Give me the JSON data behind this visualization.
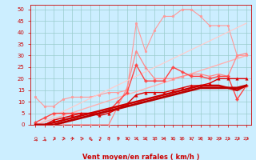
{
  "title": "",
  "xlabel": "Vent moyen/en rafales ( km/h )",
  "xlim": [
    -0.5,
    23.5
  ],
  "ylim": [
    0,
    52
  ],
  "xticks": [
    0,
    1,
    2,
    3,
    4,
    5,
    6,
    7,
    8,
    9,
    10,
    11,
    12,
    13,
    14,
    15,
    16,
    17,
    18,
    19,
    20,
    21,
    22,
    23
  ],
  "yticks": [
    0,
    5,
    10,
    15,
    20,
    25,
    30,
    35,
    40,
    45,
    50
  ],
  "bg_color": "#cceeff",
  "grid_color": "#99cccc",
  "lines": [
    {
      "comment": "lightest pink - top diagonal straight line (rafales max)",
      "color": "#ffb0b0",
      "lw": 1.0,
      "marker": null,
      "x": [
        0,
        23
      ],
      "y": [
        0,
        30
      ]
    },
    {
      "comment": "light pink with circle markers - highest peaking line",
      "color": "#ff9999",
      "lw": 0.8,
      "marker": "o",
      "markersize": 2.0,
      "x": [
        0,
        1,
        2,
        3,
        4,
        5,
        6,
        7,
        8,
        9,
        10,
        11,
        12,
        13,
        14,
        15,
        16,
        17,
        18,
        19,
        20,
        21,
        22,
        23
      ],
      "y": [
        12,
        8,
        8,
        11,
        12,
        12,
        12,
        13,
        14,
        14,
        15,
        44,
        32,
        41,
        47,
        47,
        50,
        50,
        47,
        43,
        43,
        43,
        30,
        30
      ]
    },
    {
      "comment": "medium pink triangle - second high line",
      "color": "#ff8888",
      "lw": 0.9,
      "marker": "^",
      "markersize": 2.5,
      "x": [
        0,
        1,
        2,
        3,
        4,
        5,
        6,
        7,
        8,
        9,
        10,
        11,
        12,
        13,
        14,
        15,
        16,
        17,
        18,
        19,
        20,
        21,
        22,
        23
      ],
      "y": [
        0,
        0,
        0,
        0,
        0,
        0,
        0,
        0,
        0,
        8,
        16,
        32,
        25,
        20,
        20,
        20,
        21,
        22,
        22,
        21,
        22,
        21,
        30,
        31
      ]
    },
    {
      "comment": "light pink diagonal line (straight trend, no markers)",
      "color": "#ffcccc",
      "lw": 0.9,
      "marker": null,
      "x": [
        0,
        23
      ],
      "y": [
        0,
        44
      ]
    },
    {
      "comment": "medium red with cross markers - jagged mid line",
      "color": "#ff4444",
      "lw": 1.0,
      "marker": "P",
      "markersize": 2.5,
      "x": [
        0,
        1,
        2,
        3,
        4,
        5,
        6,
        7,
        8,
        9,
        10,
        11,
        12,
        13,
        14,
        15,
        16,
        17,
        18,
        19,
        20,
        21,
        22,
        23
      ],
      "y": [
        1,
        3,
        5,
        5,
        5,
        5,
        5,
        5,
        6,
        10,
        14,
        26,
        19,
        19,
        19,
        25,
        23,
        21,
        21,
        20,
        21,
        21,
        11,
        17
      ]
    },
    {
      "comment": "bright red with triangle markers - mid line",
      "color": "#dd0000",
      "lw": 1.0,
      "marker": "^",
      "markersize": 2.5,
      "x": [
        0,
        1,
        2,
        3,
        4,
        5,
        6,
        7,
        8,
        9,
        10,
        11,
        12,
        13,
        14,
        15,
        16,
        17,
        18,
        19,
        20,
        21,
        22,
        23
      ],
      "y": [
        0,
        0,
        2,
        3,
        4,
        5,
        5,
        4,
        5,
        7,
        9,
        13,
        14,
        14,
        14,
        15,
        16,
        17,
        17,
        18,
        20,
        20,
        20,
        20
      ]
    },
    {
      "comment": "dark red smooth curve - main thick curve",
      "color": "#cc0000",
      "lw": 1.8,
      "marker": null,
      "x": [
        0,
        1,
        2,
        3,
        4,
        5,
        6,
        7,
        8,
        9,
        10,
        11,
        12,
        13,
        14,
        15,
        16,
        17,
        18,
        19,
        20,
        21,
        22,
        23
      ],
      "y": [
        0,
        0,
        1,
        2,
        3,
        4,
        5,
        6,
        7,
        8,
        9,
        10,
        11,
        12,
        13,
        14,
        15,
        16,
        17,
        17,
        17,
        16,
        15,
        17
      ]
    },
    {
      "comment": "dark red thick smooth - second main curve",
      "color": "#bb0000",
      "lw": 2.0,
      "marker": null,
      "x": [
        0,
        1,
        2,
        3,
        4,
        5,
        6,
        7,
        8,
        9,
        10,
        11,
        12,
        13,
        14,
        15,
        16,
        17,
        18,
        19,
        20,
        21,
        22,
        23
      ],
      "y": [
        0,
        0,
        0,
        1,
        2,
        3,
        4,
        5,
        6,
        7,
        8,
        9,
        10,
        11,
        12,
        13,
        14,
        15,
        16,
        16,
        16,
        16,
        16,
        17
      ]
    }
  ],
  "axis_label_color": "#cc0000",
  "tick_color": "#cc0000"
}
